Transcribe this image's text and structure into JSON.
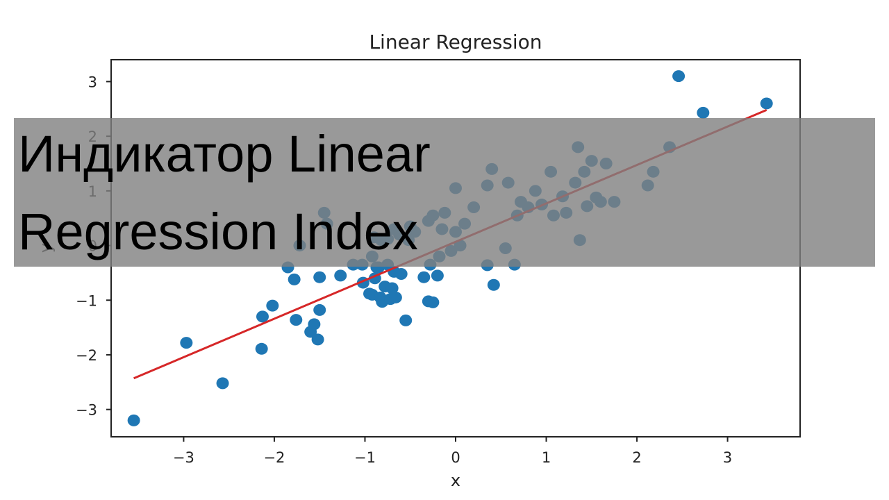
{
  "banner": {
    "text": "Индикатор Linear\nRegression Index"
  },
  "chart_data": {
    "type": "scatter",
    "title": "Linear Regression",
    "xlabel": "x",
    "ylabel": "y",
    "xlim": [
      -3.8,
      3.8
    ],
    "ylim": [
      -3.5,
      3.4
    ],
    "xticks": [
      -3,
      -2,
      -1,
      0,
      1,
      2,
      3
    ],
    "yticks": [
      -3,
      -2,
      -1,
      0,
      1,
      2,
      3
    ],
    "xtick_labels": [
      "−3",
      "−2",
      "−1",
      "0",
      "1",
      "2",
      "3"
    ],
    "ytick_labels": [
      "−3",
      "−2",
      "−1",
      "0",
      "1",
      "2",
      "3"
    ],
    "grid": false,
    "colors": {
      "points": "#1f77b4",
      "line": "#d62728",
      "frame": "#222222"
    },
    "series": [
      {
        "type": "scatter",
        "x": [
          -3.55,
          -2.97,
          -2.57,
          -2.13,
          -2.14,
          -2.02,
          -1.76,
          -1.6,
          -1.56,
          -1.52,
          -1.5,
          -1.5,
          -1.85,
          -1.78,
          -1.72,
          -1.42,
          -1.45,
          -1.27,
          -1.13,
          -1.02,
          -1.03,
          -0.95,
          -0.92,
          -0.89,
          -0.85,
          -0.83,
          -0.82,
          -0.81,
          -0.78,
          -0.75,
          -0.72,
          -0.7,
          -0.68,
          -0.66,
          -0.6,
          -0.55,
          -0.52,
          -0.87,
          -0.92,
          -0.9,
          -0.75,
          -0.62,
          -0.5,
          -0.45,
          -0.35,
          -0.3,
          -0.28,
          -0.25,
          -0.2,
          -0.18,
          -0.15,
          -0.12,
          -0.05,
          0.0,
          0.05,
          0.1,
          0.2,
          0.35,
          0.4,
          0.42,
          0.35,
          0.55,
          0.58,
          0.65,
          0.68,
          0.72,
          0.8,
          0.88,
          0.95,
          1.05,
          1.08,
          1.18,
          1.22,
          1.32,
          1.35,
          1.42,
          1.45,
          1.5,
          1.55,
          1.6,
          1.66,
          1.75,
          1.37,
          2.12,
          2.18,
          2.36,
          2.46,
          2.73,
          3.43,
          -0.25,
          -0.3,
          -0.68,
          0.0
        ],
        "y": [
          -3.2,
          -1.78,
          -2.52,
          -1.3,
          -1.89,
          -1.1,
          -1.36,
          -1.58,
          -1.44,
          -1.72,
          -0.58,
          -1.18,
          -0.4,
          -0.62,
          0.0,
          0.4,
          0.6,
          -0.55,
          -0.35,
          -0.68,
          -0.35,
          -0.88,
          -0.9,
          -0.6,
          -0.4,
          -0.95,
          0.1,
          -1.03,
          -0.75,
          -0.35,
          -0.98,
          -0.78,
          -0.48,
          -0.95,
          -0.52,
          -1.37,
          0.1,
          -0.4,
          -0.2,
          0.15,
          0.12,
          0.2,
          0.35,
          0.25,
          -0.58,
          -1.02,
          -0.35,
          -1.04,
          -0.55,
          -0.2,
          0.3,
          0.6,
          -0.1,
          1.05,
          0.0,
          0.4,
          0.7,
          1.1,
          1.4,
          -0.72,
          -0.36,
          -0.05,
          1.15,
          -0.35,
          0.55,
          0.8,
          0.7,
          1.0,
          0.75,
          1.35,
          0.55,
          0.9,
          0.6,
          1.15,
          1.8,
          1.35,
          0.72,
          1.55,
          0.88,
          0.8,
          1.5,
          0.8,
          0.1,
          1.1,
          1.35,
          1.8,
          3.1,
          2.43,
          2.6,
          0.55,
          0.45,
          0.3,
          0.25
        ]
      },
      {
        "type": "line",
        "x": [
          -3.55,
          3.43
        ],
        "y": [
          -2.43,
          2.48
        ]
      }
    ]
  }
}
